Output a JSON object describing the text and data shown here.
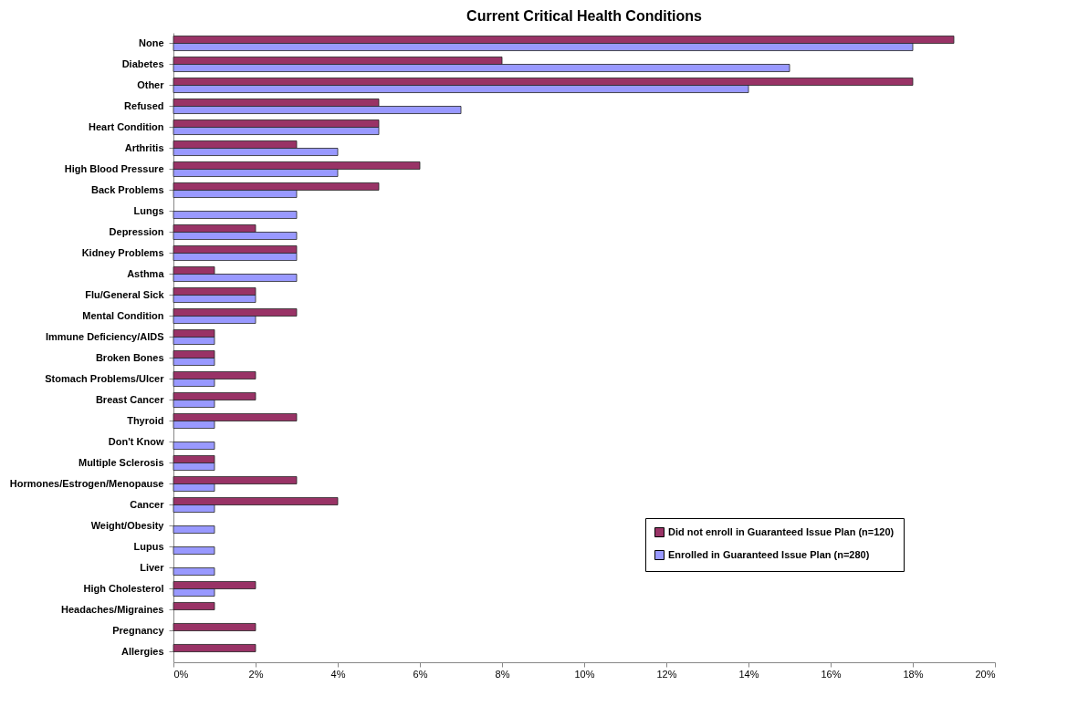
{
  "chart_data": {
    "type": "bar",
    "orientation": "horizontal",
    "title": "Current Critical Health Conditions",
    "categories": [
      "None",
      "Diabetes",
      "Other",
      "Refused",
      "Heart Condition",
      "Arthritis",
      "High Blood Pressure",
      "Back Problems",
      "Lungs",
      "Depression",
      "Kidney Problems",
      "Asthma",
      "Flu/General Sick",
      "Mental Condition",
      "Immune Deficiency/AIDS",
      "Broken Bones",
      "Stomach Problems/Ulcer",
      "Breast Cancer",
      "Thyroid",
      "Don't Know",
      "Multiple Sclerosis",
      "Hormones/Estrogen/Menopause",
      "Cancer",
      "Weight/Obesity",
      "Lupus",
      "Liver",
      "High Cholesterol",
      "Headaches/Migraines",
      "Pregnancy",
      "Allergies"
    ],
    "series": [
      {
        "name": "Did not enroll in Guaranteed Issue Plan (n=120)",
        "color": "#993366",
        "values": [
          19,
          8,
          18,
          5,
          5,
          3,
          6,
          5,
          null,
          2,
          3,
          1,
          2,
          3,
          1,
          1,
          2,
          2,
          3,
          null,
          1,
          3,
          4,
          null,
          null,
          null,
          2,
          1,
          2,
          2
        ]
      },
      {
        "name": "Enrolled in Guaranteed Issue Plan (n=280)",
        "color": "#9999ff",
        "values": [
          18,
          15,
          14,
          7,
          5,
          4,
          4,
          3,
          3,
          3,
          3,
          3,
          2,
          2,
          1,
          1,
          1,
          1,
          1,
          1,
          1,
          1,
          1,
          1,
          1,
          1,
          1,
          null,
          null,
          null
        ]
      }
    ],
    "xlim": [
      0,
      20
    ],
    "xticks": [
      {
        "value": 0,
        "label": "0%"
      },
      {
        "value": 2,
        "label": "2%"
      },
      {
        "value": 4,
        "label": "4%"
      },
      {
        "value": 6,
        "label": "6%"
      },
      {
        "value": 8,
        "label": "8%"
      },
      {
        "value": 10,
        "label": "10%"
      },
      {
        "value": 12,
        "label": "12%"
      },
      {
        "value": 14,
        "label": "14%"
      },
      {
        "value": 16,
        "label": "16%"
      },
      {
        "value": 18,
        "label": "18%"
      },
      {
        "value": 20,
        "label": "20%"
      }
    ],
    "grid": false,
    "legend": "bottom right"
  }
}
